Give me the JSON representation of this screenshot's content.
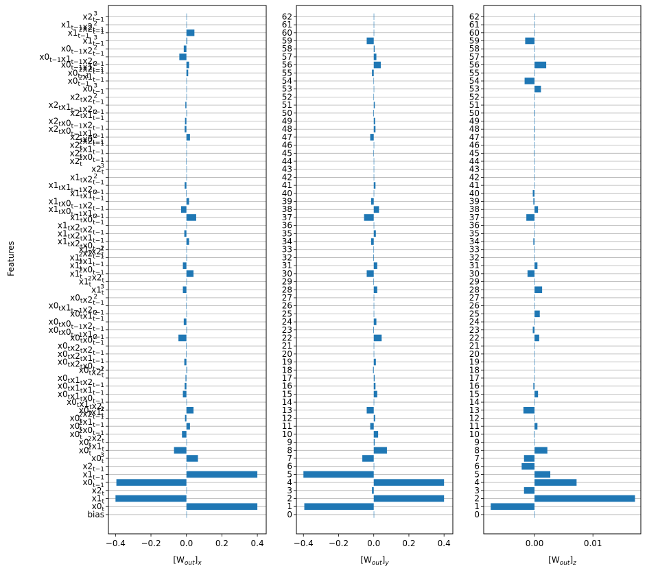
{
  "figure": {
    "ylabel": "Features",
    "bar_color": "#1f77b4",
    "grid_color": "#b0b0b0"
  },
  "chart_data": [
    {
      "type": "bar",
      "orientation": "horizontal",
      "xlabel": "[W_out]_x",
      "xlabel_parts": {
        "main": "[W",
        "sub": "out",
        "close": "]",
        "sub2": "x"
      },
      "xlim": [
        -0.44,
        0.45
      ],
      "xticks": [
        -0.4,
        -0.2,
        0.0,
        0.2,
        0.4
      ],
      "xticklabels": [
        "−0.4",
        "−0.2",
        "0.0",
        "0.2",
        "0.4"
      ],
      "ylim": [
        -2.4,
        63.4
      ],
      "grid": "horizontal",
      "categories": [
        "bias",
        "x0_t",
        "x1_t",
        "x2_t",
        "x0_{t-1}",
        "x1_{t-1}",
        "x2_{t-1}",
        "x0_t^3",
        "x0_t^2 x1_t",
        "x0_t^2 x2_t",
        "x0_t^2 x0_{t-1}",
        "x0_t^2 x1_{t-1}",
        "x0_t^2 x2_{t-1}",
        "x0_t x1_t^2",
        "x0_t x1_t x2_t",
        "x0_t x1_t x0_{t-1}",
        "x0_t x1_t x1_{t-1}",
        "x0_t x1_t x2_{t-1}",
        "x0_t x2_t^2",
        "x0_t x2_t x0_{t-1}",
        "x0_t x2_t x1_{t-1}",
        "x0_t x2_t x2_{t-1}",
        "x0_t x0_{t-1}^2",
        "x0_t x0_{t-1} x1_{t-1}",
        "x0_t x0_{t-1} x2_{t-1}",
        "x0_t x1_{t-1}^2",
        "x0_t x1_{t-1} x2_{t-1}",
        "x0_t x2_{t-1}^2",
        "x1_t^3",
        "x1_t^2 x2_t",
        "x1_t^2 x0_{t-1}",
        "x1_t^2 x1_{t-1}",
        "x1_t^2 x2_{t-1}",
        "x1_t x2_t^2",
        "x1_t x2_t x0_{t-1}",
        "x1_t x2_t x1_{t-1}",
        "x1_t x2_t x2_{t-1}",
        "x1_t x0_{t-1}^2",
        "x1_t x0_{t-1} x1_{t-1}",
        "x1_t x0_{t-1} x2_{t-1}",
        "x1_t x1_{t-1}^2",
        "x1_t x1_{t-1} x2_{t-1}",
        "x1_t x2_{t-1}^2",
        "x2_t^3",
        "x2_t^2 x0_{t-1}",
        "x2_t^2 x1_{t-1}",
        "x2_t^2 x2_{t-1}",
        "x2_t x0_{t-1}^2",
        "x2_t x0_{t-1} x1_{t-1}",
        "x2_t x0_{t-1} x2_{t-1}",
        "x2_t x1_{t-1}^2",
        "x2_t x1_{t-1} x2_{t-1}",
        "x2_t x2_{t-1}^2",
        "x0_{t-1}^3",
        "x0_{t-1}^2 x1_{t-1}",
        "x0_{t-1}^2 x2_{t-1}",
        "x0_{t-1} x1_{t-1}^2",
        "x0_{t-1} x1_{t-1} x2_{t-1}",
        "x0_{t-1} x2_{t-1}^2",
        "x1_{t-1}^3",
        "x1_{t-1}^2 x2_{t-1}",
        "x1_{t-1} x2_{t-1}^2",
        "x2_{t-1}^3"
      ],
      "values": [
        0,
        0.4,
        -0.4,
        0,
        -0.395,
        0.4,
        0,
        0.065,
        -0.07,
        0,
        -0.025,
        0.02,
        -0.008,
        0.04,
        0,
        -0.02,
        -0.01,
        -0.005,
        0.004,
        -0.012,
        -0.002,
        -0.002,
        -0.045,
        0.003,
        -0.015,
        0,
        -0.001,
        0,
        -0.02,
        0.002,
        0.04,
        -0.02,
        0.003,
        0.001,
        0.015,
        -0.012,
        0,
        0.055,
        -0.03,
        0.015,
        -0.002,
        -0.01,
        0,
        0,
        -0.001,
        0.002,
        0,
        0.02,
        -0.01,
        -0.008,
        0.003,
        -0.006,
        0.001,
        0,
        0.001,
        0.01,
        0.015,
        -0.04,
        -0.015,
        0.005,
        0.045,
        0.002,
        0.001
      ]
    },
    {
      "type": "bar",
      "orientation": "horizontal",
      "xlabel": "[W_out]_y",
      "xlabel_parts": {
        "main": "[W",
        "sub": "out",
        "close": "]",
        "sub2": "y"
      },
      "xlim": [
        -0.44,
        0.45
      ],
      "xticks": [
        -0.4,
        -0.2,
        0.0,
        0.2,
        0.4
      ],
      "xticklabels": [
        "−0.4",
        "−0.2",
        "0.0",
        "0.2",
        "0.4"
      ],
      "ylim": [
        -2.4,
        63.4
      ],
      "grid": "horizontal",
      "categories": [
        "0",
        "1",
        "2",
        "3",
        "4",
        "5",
        "6",
        "7",
        "8",
        "9",
        "10",
        "11",
        "12",
        "13",
        "14",
        "15",
        "16",
        "17",
        "18",
        "19",
        "20",
        "21",
        "22",
        "23",
        "24",
        "25",
        "26",
        "27",
        "28",
        "29",
        "30",
        "31",
        "32",
        "33",
        "34",
        "35",
        "36",
        "37",
        "38",
        "39",
        "40",
        "41",
        "42",
        "43",
        "44",
        "45",
        "46",
        "47",
        "48",
        "49",
        "50",
        "51",
        "52",
        "53",
        "54",
        "55",
        "56",
        "57",
        "58",
        "59",
        "60",
        "61",
        "62"
      ],
      "values": [
        0,
        -0.395,
        0.4,
        -0.01,
        0.4,
        -0.4,
        0,
        -0.065,
        0.075,
        0.005,
        0.025,
        -0.02,
        0.008,
        -0.04,
        0,
        0.02,
        0.01,
        0.005,
        -0.004,
        0.012,
        0.002,
        0.002,
        0.045,
        -0.003,
        0.015,
        0,
        0.001,
        0,
        0.02,
        -0.002,
        -0.04,
        0.02,
        -0.003,
        -0.001,
        -0.015,
        0.012,
        0,
        -0.055,
        0.03,
        -0.015,
        0.002,
        0.01,
        0,
        0,
        0.001,
        -0.002,
        0,
        -0.02,
        0.01,
        0.008,
        -0.003,
        0.006,
        -0.001,
        0,
        -0.001,
        -0.01,
        0.04,
        0.015,
        0.005,
        -0.04,
        0.002,
        0.001,
        0.001
      ]
    },
    {
      "type": "bar",
      "orientation": "horizontal",
      "xlabel": "[W_out]_z",
      "xlabel_parts": {
        "main": "[W",
        "sub": "out",
        "close": "]",
        "sub2": "z"
      },
      "xlim": [
        -0.0087,
        0.0182
      ],
      "xticks": [
        0.0,
        0.01
      ],
      "xticklabels": [
        "0.00",
        "0.01"
      ],
      "ylim": [
        -2.4,
        63.4
      ],
      "grid": "horizontal",
      "categories": [
        "0",
        "1",
        "2",
        "3",
        "4",
        "5",
        "6",
        "7",
        "8",
        "9",
        "10",
        "11",
        "12",
        "13",
        "14",
        "15",
        "16",
        "17",
        "18",
        "19",
        "20",
        "21",
        "22",
        "23",
        "24",
        "25",
        "26",
        "27",
        "28",
        "29",
        "30",
        "31",
        "32",
        "33",
        "34",
        "35",
        "36",
        "37",
        "38",
        "39",
        "40",
        "41",
        "42",
        "43",
        "44",
        "45",
        "46",
        "47",
        "48",
        "49",
        "50",
        "51",
        "52",
        "53",
        "54",
        "55",
        "56",
        "57",
        "58",
        "59",
        "60",
        "61",
        "62"
      ],
      "values": [
        0,
        -0.0075,
        0.0172,
        -0.0018,
        0.0072,
        0.0027,
        -0.0022,
        -0.0018,
        0.0022,
        0,
        -0.0001,
        0.0005,
        0,
        -0.0019,
        0,
        0.0006,
        -0.0002,
        0,
        0,
        0,
        0,
        0,
        0.0008,
        -0.0003,
        0,
        0.0009,
        0,
        0,
        0.0013,
        0,
        -0.0012,
        0.0005,
        0,
        0,
        -0.0002,
        0,
        0,
        -0.0014,
        0.0006,
        -0.0002,
        -0.0003,
        0,
        0,
        0,
        0,
        -0.0001,
        0,
        -0.0001,
        0.0001,
        0,
        0.0001,
        0,
        0,
        0.0011,
        -0.0017,
        0,
        0.002,
        0,
        0,
        -0.0016,
        0,
        0,
        0
      ]
    }
  ]
}
